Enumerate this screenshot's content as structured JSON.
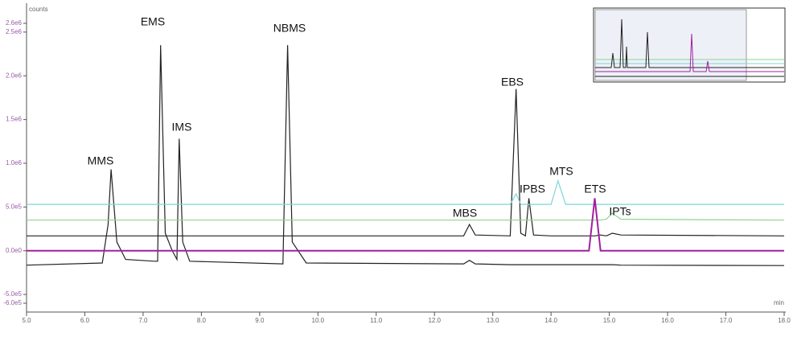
{
  "chart_data": {
    "type": "line",
    "y_axis_label": "counts",
    "x_axis_label": "min",
    "x": [
      5.0,
      6.3,
      6.4,
      6.45,
      6.55,
      6.7,
      7.2,
      7.25,
      7.3,
      7.38,
      7.5,
      7.58,
      7.62,
      7.68,
      7.8,
      9.4,
      9.48,
      9.56,
      9.8,
      12.5,
      12.6,
      12.7,
      13.3,
      13.4,
      13.48,
      13.56,
      13.62,
      13.7,
      14.0,
      14.12,
      14.25,
      14.65,
      14.75,
      14.85,
      14.95,
      15.05,
      15.2,
      18.0
    ],
    "series": [
      {
        "color": "#222222",
        "values": [
          -165000,
          -140000,
          300000,
          930000,
          100000,
          -100000,
          -120000,
          -120000,
          2350000,
          200000,
          0,
          -100000,
          1280000,
          100000,
          -120000,
          -150000,
          2350000,
          100000,
          -140000,
          -150000,
          -110000,
          -150000,
          -160000,
          -160000,
          -160000,
          -160000,
          -160000,
          -160000,
          -160000,
          -160000,
          -160000,
          -160000,
          -160000,
          -160000,
          -160000,
          -160000,
          -165000,
          -170000
        ]
      },
      {
        "color": "#222222",
        "values": [
          170000,
          170000,
          170000,
          170000,
          170000,
          170000,
          170000,
          170000,
          170000,
          170000,
          170000,
          170000,
          170000,
          170000,
          170000,
          170000,
          170000,
          170000,
          170000,
          170000,
          300000,
          180000,
          170000,
          1850000,
          200000,
          170000,
          600000,
          180000,
          170000,
          170000,
          170000,
          170000,
          170000,
          180000,
          170000,
          200000,
          180000,
          170000
        ]
      },
      {
        "color": "#8fd48f",
        "values": [
          350000,
          350000,
          350000,
          350000,
          350000,
          350000,
          350000,
          350000,
          350000,
          350000,
          350000,
          350000,
          350000,
          350000,
          350000,
          350000,
          350000,
          350000,
          350000,
          350000,
          350000,
          350000,
          350000,
          350000,
          350000,
          350000,
          350000,
          350000,
          350000,
          350000,
          350000,
          350000,
          350000,
          350000,
          360000,
          430000,
          360000,
          350000
        ]
      },
      {
        "color": "#7fd6d6",
        "values": [
          530000,
          530000,
          530000,
          530000,
          530000,
          530000,
          530000,
          530000,
          530000,
          530000,
          530000,
          530000,
          530000,
          530000,
          530000,
          530000,
          530000,
          530000,
          530000,
          530000,
          530000,
          530000,
          530000,
          650000,
          530000,
          530000,
          530000,
          530000,
          530000,
          800000,
          530000,
          530000,
          530000,
          530000,
          530000,
          530000,
          530000,
          530000
        ]
      },
      {
        "color": "#a020a0",
        "values": [
          0,
          0,
          0,
          0,
          0,
          0,
          0,
          0,
          0,
          0,
          0,
          0,
          0,
          0,
          0,
          0,
          0,
          0,
          0,
          0,
          0,
          0,
          0,
          0,
          0,
          0,
          0,
          0,
          0,
          0,
          0,
          0,
          600000,
          0,
          0,
          0,
          0,
          0
        ]
      }
    ],
    "annotations": [
      "MMS",
      "EMS",
      "IMS",
      "NBMS",
      "MBS",
      "EBS",
      "IPBS",
      "MTS",
      "ETS",
      "IPTs"
    ],
    "xlim": [
      5.0,
      18.0
    ],
    "xticks": [
      {
        "value": 5,
        "label": "5.0"
      },
      {
        "value": 6,
        "label": "6.0"
      },
      {
        "value": 7,
        "label": "7.0"
      },
      {
        "value": 8,
        "label": "8.0"
      },
      {
        "value": 9,
        "label": "9.0"
      },
      {
        "value": 10,
        "label": "10.0"
      },
      {
        "value": 11,
        "label": "11.0"
      },
      {
        "value": 12,
        "label": "12.0"
      },
      {
        "value": 13,
        "label": "13.0"
      },
      {
        "value": 14,
        "label": "14.0"
      },
      {
        "value": 15,
        "label": "15.0"
      },
      {
        "value": 16,
        "label": "16.0"
      },
      {
        "value": 17,
        "label": "17.0"
      },
      {
        "value": 18,
        "label": "18.0"
      }
    ],
    "ylim": [
      -600000,
      2600000
    ],
    "yticks": [
      {
        "value": -600000,
        "label": "-6.0e5"
      },
      {
        "value": -500000,
        "label": "-5.0e5"
      },
      {
        "value": 0,
        "label": "0.0e0"
      },
      {
        "value": 500000,
        "label": "5.0e5"
      },
      {
        "value": 1000000,
        "label": "1.0e6"
      },
      {
        "value": 1500000,
        "label": "1.5e6"
      },
      {
        "value": 2000000,
        "label": "2.0e6"
      },
      {
        "value": 2500000,
        "label": "2.5e6"
      },
      {
        "value": 2600000,
        "label": "2.6e6"
      }
    ]
  }
}
